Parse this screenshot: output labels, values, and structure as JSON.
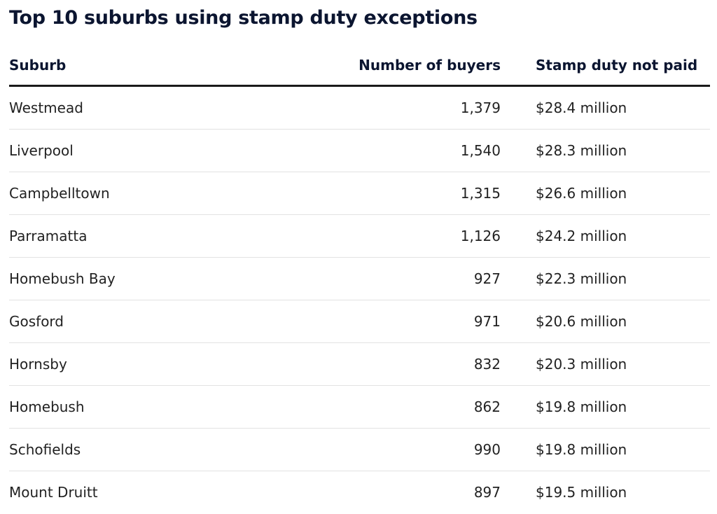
{
  "chart_data": {
    "type": "table",
    "title": "Top 10 suburbs using stamp duty exceptions",
    "columns": [
      "Suburb",
      "Number of buyers",
      "Stamp duty not paid"
    ],
    "rows": [
      {
        "suburb": "Westmead",
        "buyers": "1,379",
        "duty": "$28.4 million"
      },
      {
        "suburb": "Liverpool",
        "buyers": "1,540",
        "duty": "$28.3 million"
      },
      {
        "suburb": "Campbelltown",
        "buyers": "1,315",
        "duty": "$26.6 million"
      },
      {
        "suburb": "Parramatta",
        "buyers": "1,126",
        "duty": "$24.2 million"
      },
      {
        "suburb": "Homebush Bay",
        "buyers": "927",
        "duty": "$22.3 million"
      },
      {
        "suburb": "Gosford",
        "buyers": "971",
        "duty": "$20.6 million"
      },
      {
        "suburb": "Hornsby",
        "buyers": "832",
        "duty": "$20.3 million"
      },
      {
        "suburb": "Homebush",
        "buyers": "862",
        "duty": "$19.8 million"
      },
      {
        "suburb": "Schofields",
        "buyers": "990",
        "duty": "$19.8 million"
      },
      {
        "suburb": "Mount Druitt",
        "buyers": "897",
        "duty": "$19.5 million"
      }
    ]
  },
  "colors": {
    "title": "#0b1530",
    "header_rule": "#1a1a1a",
    "row_rule": "#e2e2e2"
  }
}
